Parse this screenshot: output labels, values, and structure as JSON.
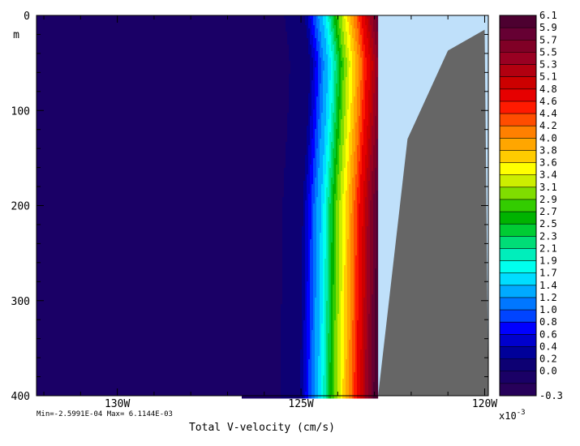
{
  "chart_data": {
    "type": "heatmap",
    "title": "",
    "xlabel": "Total V-velocity (cm/s)",
    "ylabel": "m",
    "x_ticks": [
      "130W",
      "125W",
      "120W"
    ],
    "x_tick_values": [
      -130,
      -125,
      -120
    ],
    "xlim": [
      -132.2,
      -119.9
    ],
    "y_ticks": [
      "0",
      "100",
      "200",
      "300",
      "400"
    ],
    "y_tick_values": [
      0,
      100,
      200,
      300,
      400
    ],
    "ylim": [
      400,
      0
    ],
    "y_inverted": true,
    "stats_text": "Min=-2.5991E-04  Max= 6.1144E-03",
    "colorbar": {
      "multiplier_text": "x10",
      "multiplier_exp": "-3",
      "levels": [
        "6.1",
        "5.9",
        "5.7",
        "5.5",
        "5.3",
        "5.1",
        "4.8",
        "4.6",
        "4.4",
        "4.2",
        "4.0",
        "3.8",
        "3.6",
        "3.4",
        "3.1",
        "2.9",
        "2.7",
        "2.5",
        "2.3",
        "2.1",
        "1.9",
        "1.7",
        "1.4",
        "1.2",
        "1.0",
        "0.8",
        "0.6",
        "0.4",
        "0.2",
        "0.0",
        "-0.3"
      ],
      "colors": [
        "#4d0030",
        "#660033",
        "#800026",
        "#990022",
        "#b20010",
        "#cc0000",
        "#e60000",
        "#ff1a00",
        "#ff4d00",
        "#ff8000",
        "#ffa600",
        "#ffcc00",
        "#ffff00",
        "#ccee00",
        "#80dd00",
        "#33cc00",
        "#00b300",
        "#00cc33",
        "#00dd77",
        "#00eebb",
        "#00ffee",
        "#00ddff",
        "#00aaff",
        "#0077ff",
        "#0044ff",
        "#0000ff",
        "#0000cc",
        "#000099",
        "#0d0073",
        "#1a0066",
        "#27005a"
      ]
    },
    "profile_longitudes": [
      -126.0,
      -124.9,
      -124.6,
      -124.3,
      -124.1,
      -123.9,
      -123.7,
      -123.5,
      -123.3,
      -123.1,
      -122.9
    ],
    "profile_levels_x1e3": [
      0.0,
      0.4,
      1.2,
      2.0,
      2.7,
      3.4,
      3.9,
      4.4,
      5.0,
      5.6,
      6.1
    ],
    "front_shift_deg_by_depth": [
      [
        0,
        0.0
      ],
      [
        50,
        0.15
      ],
      [
        100,
        0.1
      ],
      [
        200,
        -0.05
      ],
      [
        300,
        -0.08
      ],
      [
        400,
        -0.12
      ]
    ],
    "missing_fill_color": "#bfe0fa",
    "land_color": "#666666",
    "land_boundary": [
      [
        -122.9,
        400
      ],
      [
        -122.1,
        130
      ],
      [
        -121.0,
        37
      ],
      [
        -120.0,
        15
      ]
    ],
    "coast_top_longitude": -122.9
  }
}
